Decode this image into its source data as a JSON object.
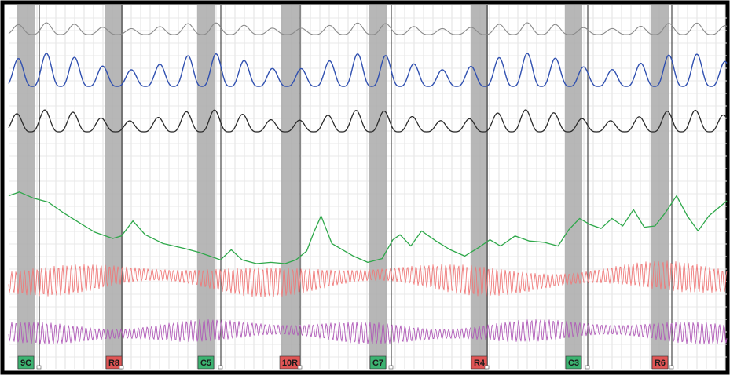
{
  "chart_data": {
    "type": "line",
    "grid": true,
    "xlim": [
      0,
      100
    ],
    "channels": [
      {
        "id": "pneumo-upper",
        "color": "#8a8a8a"
      },
      {
        "id": "pneumo-lower",
        "color": "#3050b0"
      },
      {
        "id": "cardio",
        "color": "#2a2a2a"
      },
      {
        "id": "eda",
        "color": "#2ea84a"
      },
      {
        "id": "cardio-pulse",
        "color": "#f07a7a"
      },
      {
        "id": "plethysmograph",
        "color": "#b05ab8"
      }
    ],
    "eda_trace": [
      [
        0,
        31
      ],
      [
        1.5,
        28
      ],
      [
        3.5,
        33
      ],
      [
        5.5,
        36
      ],
      [
        7.5,
        44
      ],
      [
        10,
        53
      ],
      [
        12,
        60
      ],
      [
        14.5,
        65
      ],
      [
        15.7,
        63
      ],
      [
        17.3,
        51
      ],
      [
        19,
        62
      ],
      [
        21.5,
        69
      ],
      [
        24.5,
        73
      ],
      [
        26.5,
        76
      ],
      [
        28,
        79
      ],
      [
        29.5,
        82
      ],
      [
        31,
        74
      ],
      [
        32.5,
        82
      ],
      [
        34.5,
        85
      ],
      [
        36.5,
        84
      ],
      [
        38.5,
        85
      ],
      [
        40,
        82
      ],
      [
        41.5,
        75
      ],
      [
        42.5,
        60
      ],
      [
        43.5,
        47
      ],
      [
        45,
        69
      ],
      [
        48,
        79
      ],
      [
        50,
        84
      ],
      [
        52,
        81
      ],
      [
        53.5,
        66
      ],
      [
        54.5,
        62
      ],
      [
        56,
        71
      ],
      [
        57.5,
        59
      ],
      [
        59.5,
        67
      ],
      [
        61.5,
        74
      ],
      [
        63.5,
        79
      ],
      [
        65.5,
        72
      ],
      [
        67,
        66
      ],
      [
        68.5,
        71
      ],
      [
        70.5,
        63
      ],
      [
        72.5,
        67
      ],
      [
        74.5,
        68
      ],
      [
        76.5,
        71
      ],
      [
        78,
        58
      ],
      [
        79.5,
        49
      ],
      [
        81,
        54
      ],
      [
        82.5,
        57
      ],
      [
        84,
        49
      ],
      [
        85.5,
        55
      ],
      [
        87,
        42
      ],
      [
        88.5,
        56
      ],
      [
        90,
        55
      ],
      [
        91.5,
        44
      ],
      [
        93,
        31
      ],
      [
        94.5,
        47
      ],
      [
        96,
        59
      ],
      [
        97.5,
        47
      ],
      [
        100,
        35
      ]
    ],
    "question_markers": [
      {
        "label": "9C",
        "category": "comparison",
        "color": "#3cb371"
      },
      {
        "label": "R8",
        "category": "relevant",
        "color": "#e05555"
      },
      {
        "label": "C5",
        "category": "comparison",
        "color": "#3cb371"
      },
      {
        "label": "10R",
        "category": "relevant",
        "color": "#e05555"
      },
      {
        "label": "C7",
        "category": "comparison",
        "color": "#3cb371"
      },
      {
        "label": "R4",
        "category": "relevant",
        "color": "#e05555"
      },
      {
        "label": "C3",
        "category": "comparison",
        "color": "#3cb371"
      },
      {
        "label": "R6",
        "category": "relevant",
        "color": "#e05555"
      }
    ]
  }
}
